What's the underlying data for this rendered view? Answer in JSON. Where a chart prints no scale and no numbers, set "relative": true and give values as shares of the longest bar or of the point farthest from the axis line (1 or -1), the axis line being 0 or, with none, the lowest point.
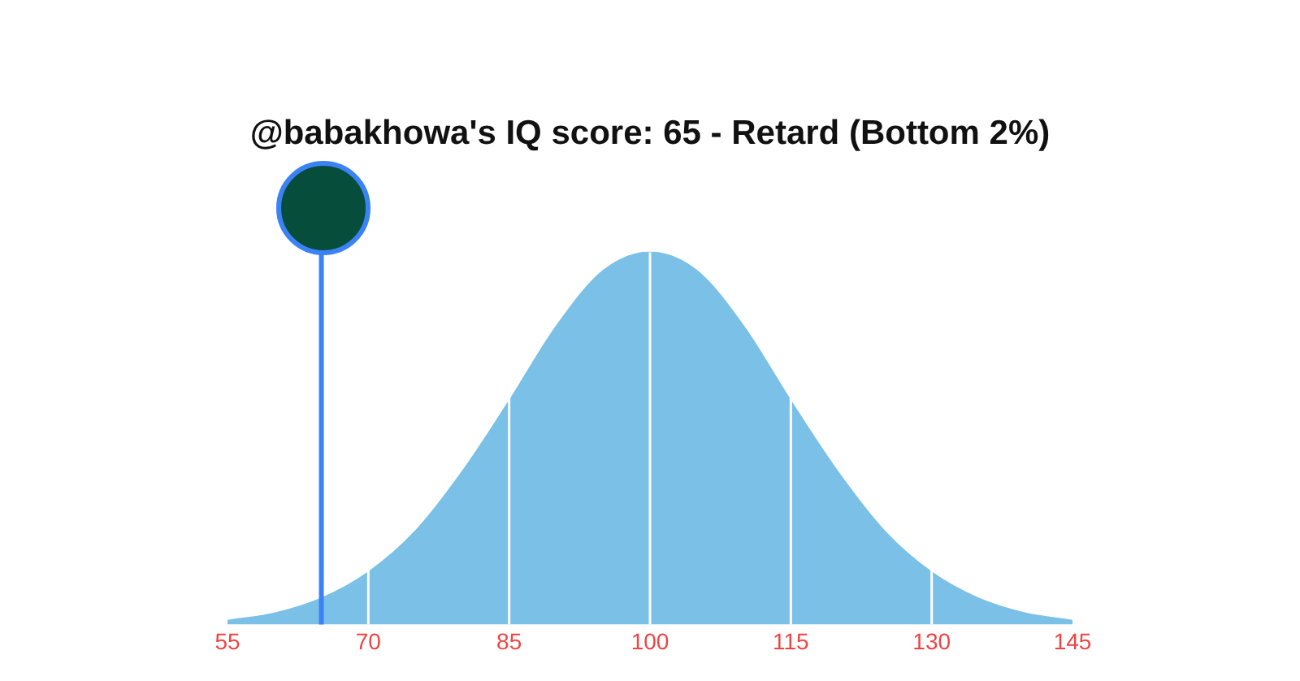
{
  "chart_data": {
    "type": "area",
    "subtitle": "@babakhowa's IQ score: 65 - Retard (Bottom 2%)",
    "relative": true,
    "x": [
      55,
      60,
      65,
      70,
      75,
      80,
      85,
      90,
      95,
      100,
      105,
      110,
      115,
      120,
      125,
      130,
      135,
      140,
      145
    ],
    "series": [
      {
        "color": "#7bc0e6",
        "values": [
          0.01,
          0.03,
          0.07,
          0.14,
          0.25,
          0.41,
          0.6,
          0.8,
          0.95,
          1,
          0.95,
          0.8,
          0.6,
          0.41,
          0.25,
          0.14,
          0.07,
          0.03,
          0.01
        ]
      }
    ],
    "xlim": [
      55,
      145
    ],
    "xticks": [
      55,
      70,
      85,
      100,
      115,
      130,
      145
    ],
    "ref_lines": [
      {
        "axis": "x",
        "value": 70,
        "color": "#ffffff"
      },
      {
        "axis": "x",
        "value": 85,
        "color": "#ffffff"
      },
      {
        "axis": "x",
        "value": 100,
        "color": "#ffffff"
      },
      {
        "axis": "x",
        "value": 115,
        "color": "#ffffff"
      },
      {
        "axis": "x",
        "value": 130,
        "color": "#ffffff"
      },
      {
        "axis": "x",
        "value": 65,
        "color": "#3b82f6"
      }
    ],
    "grid": false,
    "legend": false
  }
}
